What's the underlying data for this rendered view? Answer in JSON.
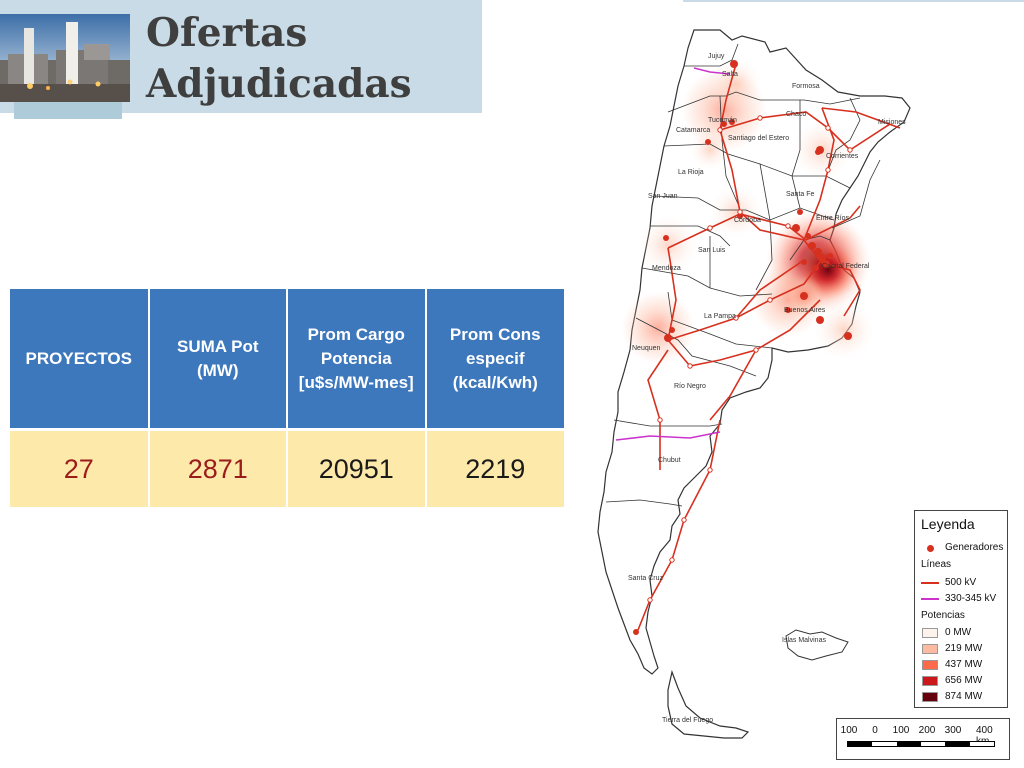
{
  "title": "Ofertas Adjudicadas",
  "table": {
    "headers": [
      "PROYECTOS",
      "SUMA Pot (MW)",
      "Prom Cargo Potencia [u$s/MW-mes]",
      "Prom Cons especif (kcal/Kwh)"
    ],
    "values": [
      "27",
      "2871",
      "20951",
      "2219"
    ]
  },
  "map": {
    "labels": [
      "Jujuy",
      "Salta",
      "Formosa",
      "Chaco",
      "Misiones",
      "Catamarca",
      "Santiago del Estero",
      "Corrientes",
      "Tucumán",
      "La Rioja",
      "San Juan",
      "Santa Fe",
      "Entre Ríos",
      "Córdoba",
      "San Luis",
      "Mendoza",
      "Capital Federal",
      "Buenos Aires",
      "La Pampa",
      "Neuquen",
      "Río Negro",
      "Chubut",
      "Santa Cruz",
      "Islas Malvinas",
      "Tierra del Fuego"
    ],
    "colors": {
      "land": "#ffffff",
      "border": "#333333",
      "line_500kv": "#d7301f",
      "line_330kv": "#cc33cc",
      "generator": "#d7301f"
    }
  },
  "legend": {
    "title": "Leyenda",
    "generators": "Generadores",
    "lines_title": "Líneas",
    "line_500": "500 kV",
    "line_330": "330-345 kV",
    "power_title": "Potencias",
    "power_levels": [
      {
        "label": "0 MW",
        "color": "#fdf2ec"
      },
      {
        "label": "219 MW",
        "color": "#fcbba1"
      },
      {
        "label": "437 MW",
        "color": "#fb6a4a"
      },
      {
        "label": "656 MW",
        "color": "#cb181d"
      },
      {
        "label": "874 MW",
        "color": "#67000d"
      }
    ]
  },
  "scale": {
    "labels": [
      "100",
      "0",
      "100",
      "200",
      "300",
      "400 km"
    ]
  }
}
